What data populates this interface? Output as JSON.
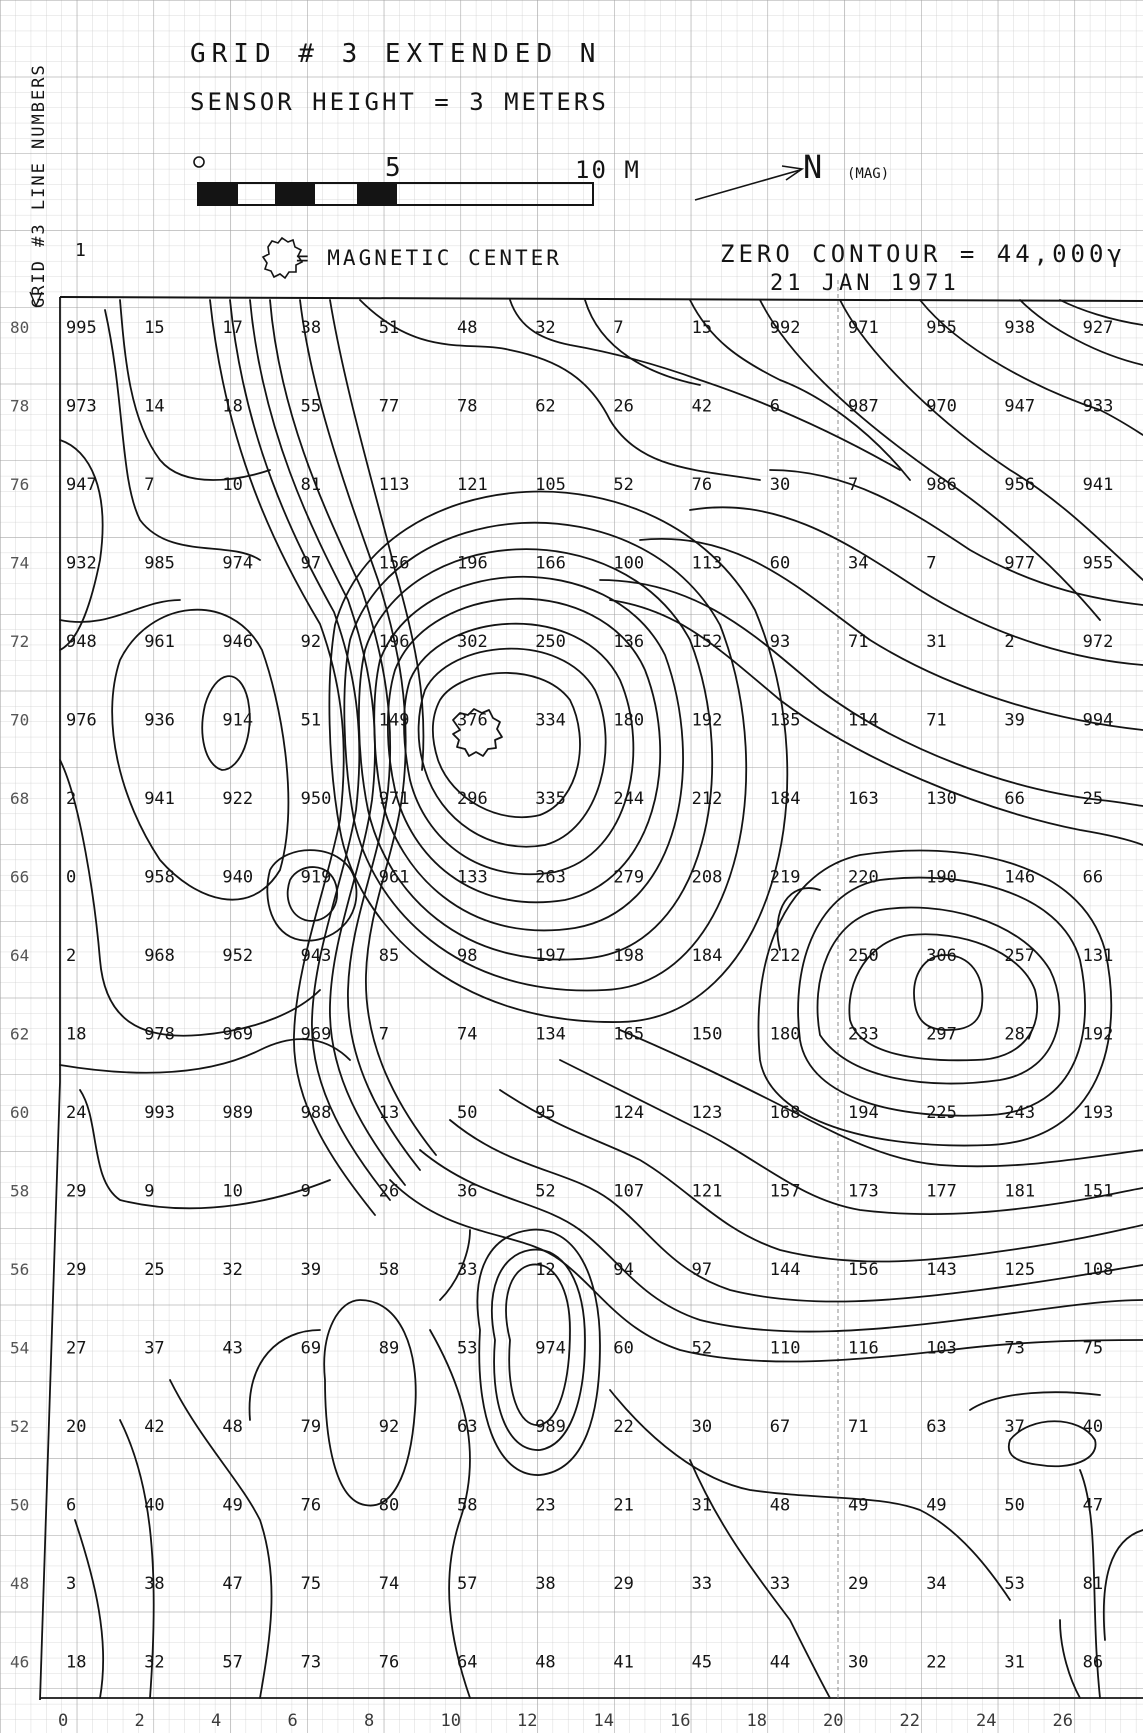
{
  "header": {
    "line1": "GRID # 3 EXTENDED N",
    "line2": "SENSOR HEIGHT = 3 METERS",
    "scale": {
      "tick0": "0",
      "tick5": "5",
      "tick10": "10 M"
    },
    "north_label": "N",
    "north_note": "(MAG)",
    "legend_text": "= MAGNETIC CENTER",
    "zero_contour": "ZERO CONTOUR = 44,000γ",
    "date": "21 JAN 1971",
    "side_label": "GRID #3 LINE NUMBERS",
    "line_one": "1"
  },
  "colors": {
    "ink": "#141414",
    "grid_minor": "#cfcfcf",
    "grid_major": "#a3a3a3",
    "paper": "#ffffff"
  },
  "chart_data": {
    "type": "heatmap",
    "title": "GRID # 3 EXTENDED N",
    "xlabel": "",
    "ylabel": "GRID #3 LINE NUMBERS",
    "x": [
      "0",
      "2",
      "4",
      "6",
      "8",
      "10",
      "12",
      "14",
      "16",
      "18",
      "20",
      "22",
      "24",
      "26"
    ],
    "y": [
      "80",
      "78",
      "76",
      "74",
      "72",
      "70",
      "68",
      "66",
      "64",
      "62",
      "60",
      "58",
      "56",
      "54",
      "52",
      "50",
      "48",
      "46"
    ],
    "values": [
      [
        "995",
        "15",
        "17",
        "38",
        "51",
        "48",
        "32",
        "7",
        "15",
        "992",
        "971",
        "955",
        "938",
        "927"
      ],
      [
        "973",
        "14",
        "18",
        "55",
        "77",
        "78",
        "62",
        "26",
        "42",
        "6",
        "987",
        "970",
        "947",
        "933"
      ],
      [
        "947",
        "7",
        "10",
        "81",
        "113",
        "121",
        "105",
        "52",
        "76",
        "30",
        "7",
        "986",
        "956",
        "941"
      ],
      [
        "932",
        "985",
        "974",
        "97",
        "156",
        "196",
        "166",
        "100",
        "113",
        "60",
        "34",
        "7",
        "977",
        "955"
      ],
      [
        "948",
        "961",
        "946",
        "92",
        "196",
        "302",
        "250",
        "136",
        "152",
        "93",
        "71",
        "31",
        "2",
        "972"
      ],
      [
        "976",
        "936",
        "914",
        "51",
        "149",
        "376",
        "334",
        "180",
        "192",
        "135",
        "114",
        "71",
        "39",
        "994"
      ],
      [
        "2",
        "941",
        "922",
        "950",
        "971",
        "296",
        "335",
        "244",
        "212",
        "184",
        "163",
        "130",
        "66",
        "25"
      ],
      [
        "0",
        "958",
        "940",
        "919",
        "961",
        "133",
        "263",
        "279",
        "208",
        "219",
        "220",
        "190",
        "146",
        "66"
      ],
      [
        "2",
        "968",
        "952",
        "943",
        "85",
        "98",
        "197",
        "198",
        "184",
        "212",
        "250",
        "306",
        "257",
        "131"
      ],
      [
        "18",
        "978",
        "969",
        "969",
        "7",
        "74",
        "134",
        "165",
        "150",
        "180",
        "233",
        "297",
        "287",
        "192"
      ],
      [
        "24",
        "993",
        "989",
        "988",
        "13",
        "50",
        "95",
        "124",
        "123",
        "168",
        "194",
        "225",
        "243",
        "193"
      ],
      [
        "29",
        "9",
        "10",
        "9",
        "26",
        "36",
        "52",
        "107",
        "121",
        "157",
        "173",
        "177",
        "181",
        "151"
      ],
      [
        "29",
        "25",
        "32",
        "39",
        "58",
        "33",
        "12",
        "94",
        "97",
        "144",
        "156",
        "143",
        "125",
        "108"
      ],
      [
        "27",
        "37",
        "43",
        "69",
        "89",
        "53",
        "974",
        "60",
        "52",
        "110",
        "116",
        "103",
        "73",
        "75"
      ],
      [
        "20",
        "42",
        "48",
        "79",
        "92",
        "63",
        "989",
        "22",
        "30",
        "67",
        "71",
        "63",
        "37",
        "40"
      ],
      [
        "6",
        "40",
        "49",
        "76",
        "80",
        "58",
        "23",
        "21",
        "31",
        "48",
        "49",
        "49",
        "50",
        "47"
      ],
      [
        "3",
        "38",
        "47",
        "75",
        "74",
        "57",
        "38",
        "29",
        "33",
        "33",
        "29",
        "34",
        "53",
        "81"
      ],
      [
        "18",
        "32",
        "57",
        "73",
        "76",
        "64",
        "48",
        "41",
        "45",
        "44",
        "30",
        "22",
        "31",
        "86"
      ]
    ],
    "magnetic_center": {
      "x": "10",
      "y": "70",
      "value": "376"
    },
    "grid": true
  }
}
